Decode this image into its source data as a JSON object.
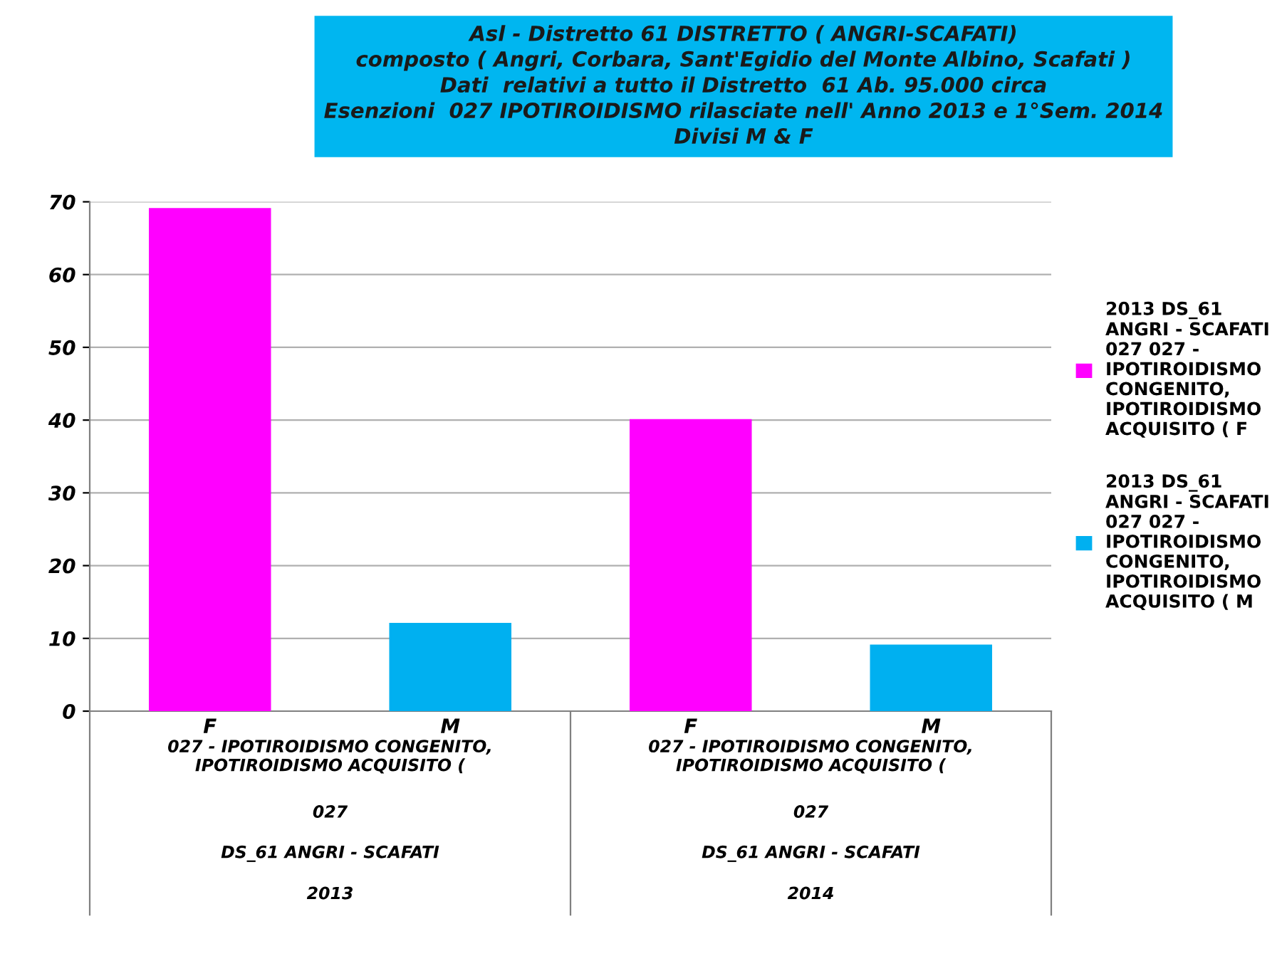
{
  "chart_data": {
    "type": "bar",
    "title": "Asl - Distretto 61 DISTRETTO ( ANGRI-SCAFATI)\ncomposto ( Angri, Corbara, Sant'Egidio del Monte Albino, Scafati )\nDati  relativi a tutto il Distretto  61 Ab. 95.000 circa\nEsenzioni  027 IPOTIROIDISMO rilasciate nell' Anno 2013 e 1°Sem. 2014\nDivisi M & F",
    "categories": [
      "F",
      "M",
      "F",
      "M"
    ],
    "series": [
      {
        "name": "2013 DS_61\nANGRI - SCAFATI\n027 027 -\nIPOTIROIDISMO\nCONGENITO,\nIPOTIROIDISMO\nACQUISITO ( F",
        "color": "#ff00ff",
        "values": [
          69,
          null,
          40,
          null
        ]
      },
      {
        "name": "2013 DS_61\nANGRI - SCAFATI\n027 027 -\nIPOTIROIDISMO\nCONGENITO,\nIPOTIROIDISMO\nACQUISITO ( M",
        "color": "#00b0f0",
        "values": [
          null,
          12,
          null,
          9
        ]
      }
    ],
    "annotations": [
      "027 - IPOTIROIDISMO CONGENITO,\nIPOTIROIDISMO ACQUISITO (",
      "027",
      "DS_61 ANGRI - SCAFATI",
      "2013",
      "027 - IPOTIROIDISMO CONGENITO,\nIPOTIROIDISMO ACQUISITO (",
      "027",
      "DS_61 ANGRI - SCAFATI",
      "2014"
    ],
    "ylim": [
      0,
      70
    ],
    "yticks": [
      0,
      10,
      20,
      30,
      40,
      50,
      60,
      70
    ],
    "grid": "y",
    "legend": "right"
  }
}
